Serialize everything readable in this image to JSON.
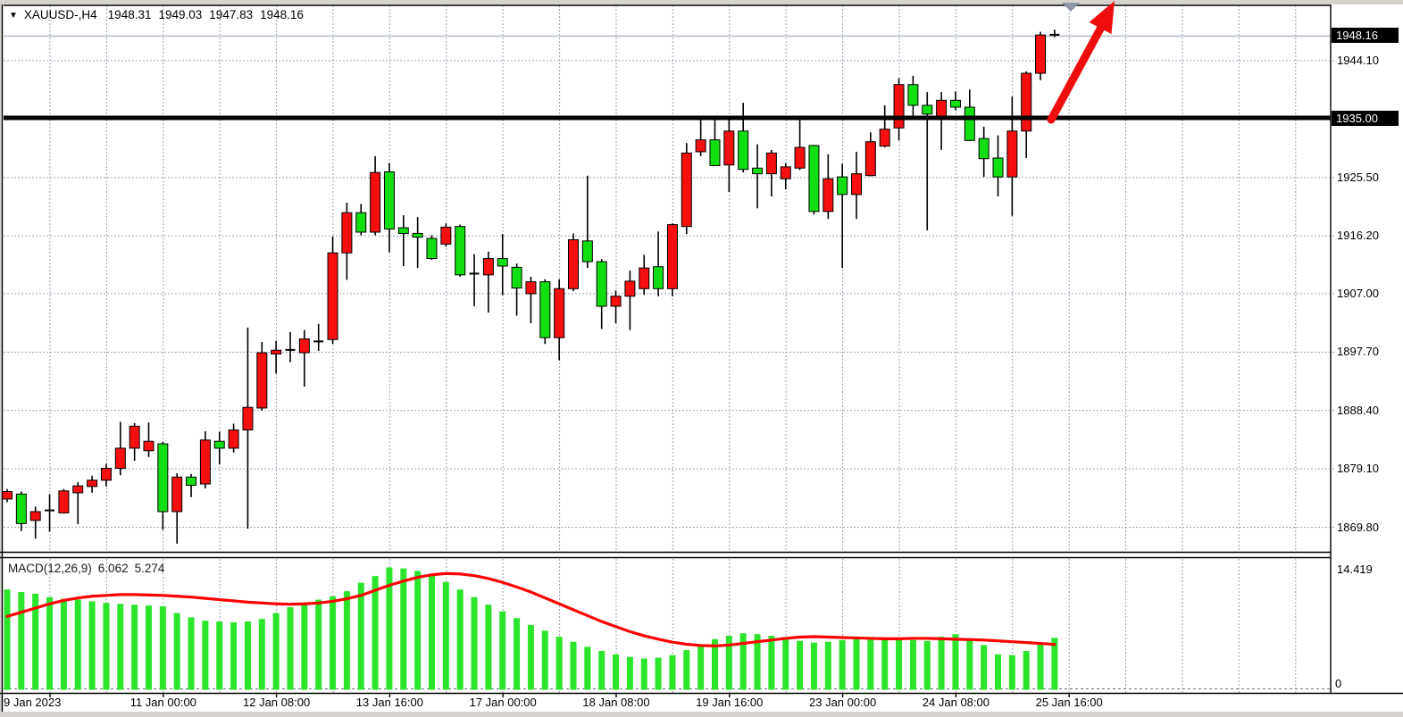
{
  "header": {
    "dropdown_icon": "▼",
    "symbol_period": "XAUUSD-,H4",
    "open": "1948.31",
    "high": "1949.03",
    "low": "1947.83",
    "close": "1948.16"
  },
  "indicator": {
    "name": "MACD(12,26,9)",
    "macd_value": "6.062",
    "signal_value": "5.274"
  },
  "price_axis": {
    "last_price_badge": "1948.16",
    "hline_badge": "1935.00",
    "ticks": [
      {
        "label": "1944.10",
        "price": 1944.1
      },
      {
        "label": "1925.50",
        "price": 1925.5
      },
      {
        "label": "1916.20",
        "price": 1916.2
      },
      {
        "label": "1907.00",
        "price": 1907.0
      },
      {
        "label": "1897.70",
        "price": 1897.7
      },
      {
        "label": "1888.40",
        "price": 1888.4
      },
      {
        "label": "1879.10",
        "price": 1879.1
      },
      {
        "label": "1869.80",
        "price": 1869.8
      }
    ]
  },
  "macd_axis": {
    "max_label": "14.419",
    "zero_label": "0"
  },
  "time_axis": {
    "labels": [
      "9 Jan 2023",
      "11 Jan 00:00",
      "12 Jan 08:00",
      "13 Jan 16:00",
      "17 Jan 00:00",
      "18 Jan 08:00",
      "19 Jan 16:00",
      "23 Jan 00:00",
      "24 Jan 08:00",
      "25 Jan 16:00"
    ]
  },
  "colors": {
    "bull": "#f50f0f",
    "bear": "#12df12",
    "wick": "#000000",
    "grid": "#99a1b0",
    "hline": "#000000",
    "last_price_line": "#b9bfca",
    "macd_histogram": "#2ae52a",
    "macd_signal": "#ff0000",
    "annotation_arrow": "#ee0d0d",
    "shift_marker": "#8d96a4",
    "badge_bg": "#000000",
    "chrome": "#d6d3ce"
  },
  "chart_data": [
    {
      "type": "candlestick",
      "title": "XAUUSD-,H4",
      "ylim": [
        1866.0,
        1953.0
      ],
      "grid_prices": [
        1944.1,
        1934.8,
        1925.5,
        1916.2,
        1907.0,
        1897.7,
        1888.4,
        1879.1,
        1869.8
      ],
      "last_price": 1948.16,
      "annotations": {
        "hline_price": 1935.0,
        "arrow": {
          "desc": "thick red up-right arrow",
          "from_price": 1935.0,
          "to_top": true
        },
        "shift_marker": "gray down triangle at top right"
      },
      "ohlc": [
        [
          1874.3,
          1875.9,
          1873.8,
          1875.5
        ],
        [
          1875.1,
          1875.5,
          1869.2,
          1870.4
        ],
        [
          1870.9,
          1873.1,
          1868.0,
          1872.3
        ],
        [
          1872.4,
          1875.1,
          1869.1,
          1872.6
        ],
        [
          1872.1,
          1875.9,
          1872.0,
          1875.6
        ],
        [
          1875.3,
          1877.0,
          1870.3,
          1876.4
        ],
        [
          1876.3,
          1878.0,
          1875.3,
          1877.3
        ],
        [
          1877.3,
          1879.9,
          1876.3,
          1879.2
        ],
        [
          1879.2,
          1886.6,
          1878.1,
          1882.4
        ],
        [
          1882.4,
          1886.4,
          1880.4,
          1885.9
        ],
        [
          1882.0,
          1886.5,
          1881.0,
          1883.5
        ],
        [
          1883.1,
          1883.4,
          1869.4,
          1872.3
        ],
        [
          1872.3,
          1878.4,
          1867.2,
          1877.8
        ],
        [
          1877.8,
          1878.3,
          1874.6,
          1876.5
        ],
        [
          1876.7,
          1885.1,
          1876.0,
          1883.7
        ],
        [
          1883.5,
          1885.0,
          1879.8,
          1882.4
        ],
        [
          1882.4,
          1886.3,
          1881.7,
          1885.3
        ],
        [
          1885.3,
          1901.6,
          1869.6,
          1888.9
        ],
        [
          1888.8,
          1899.3,
          1888.4,
          1897.6
        ],
        [
          1897.4,
          1899.5,
          1894.3,
          1898.0
        ],
        [
          1897.9,
          1900.9,
          1896.1,
          1898.2
        ],
        [
          1897.6,
          1901.2,
          1892.2,
          1899.8
        ],
        [
          1899.3,
          1902.2,
          1897.9,
          1899.5
        ],
        [
          1899.7,
          1916.1,
          1899.0,
          1913.5
        ],
        [
          1913.5,
          1921.5,
          1909.2,
          1919.9
        ],
        [
          1919.9,
          1921.3,
          1916.3,
          1916.8
        ],
        [
          1916.8,
          1928.9,
          1916.3,
          1926.3
        ],
        [
          1926.4,
          1927.8,
          1913.6,
          1917.3
        ],
        [
          1917.5,
          1919.5,
          1911.4,
          1916.6
        ],
        [
          1916.6,
          1919.2,
          1911.1,
          1916.0
        ],
        [
          1915.8,
          1916.3,
          1912.4,
          1912.6
        ],
        [
          1914.9,
          1918.2,
          1914.5,
          1917.6
        ],
        [
          1917.7,
          1918.0,
          1909.7,
          1910.0
        ],
        [
          1910.1,
          1913.3,
          1905.0,
          1910.3
        ],
        [
          1910.0,
          1913.7,
          1904.0,
          1912.6
        ],
        [
          1912.6,
          1916.5,
          1906.8,
          1911.4
        ],
        [
          1911.2,
          1911.8,
          1903.5,
          1907.9
        ],
        [
          1907.0,
          1909.7,
          1902.3,
          1908.9
        ],
        [
          1908.9,
          1909.3,
          1899.0,
          1900.0
        ],
        [
          1900.0,
          1909.3,
          1896.4,
          1907.8
        ],
        [
          1907.8,
          1916.6,
          1907.4,
          1915.6
        ],
        [
          1915.4,
          1925.8,
          1911.1,
          1912.1
        ],
        [
          1912.1,
          1912.5,
          1901.4,
          1905.0
        ],
        [
          1905.0,
          1907.5,
          1902.3,
          1906.6
        ],
        [
          1906.6,
          1910.7,
          1901.2,
          1909.0
        ],
        [
          1907.8,
          1913.2,
          1906.8,
          1911.1
        ],
        [
          1911.3,
          1916.9,
          1906.6,
          1907.8
        ],
        [
          1907.8,
          1918.2,
          1906.6,
          1918.0
        ],
        [
          1917.7,
          1931.0,
          1916.5,
          1929.4
        ],
        [
          1929.6,
          1934.7,
          1928.9,
          1931.5
        ],
        [
          1931.5,
          1934.7,
          1927.4,
          1927.4
        ],
        [
          1927.5,
          1934.7,
          1923.2,
          1932.9
        ],
        [
          1932.9,
          1937.4,
          1926.3,
          1926.8
        ],
        [
          1927.0,
          1930.8,
          1920.6,
          1926.1
        ],
        [
          1926.1,
          1929.9,
          1922.5,
          1929.4
        ],
        [
          1925.3,
          1927.8,
          1923.6,
          1927.2
        ],
        [
          1927.0,
          1935.0,
          1926.7,
          1930.3
        ],
        [
          1930.6,
          1930.7,
          1919.6,
          1920.1
        ],
        [
          1920.1,
          1929.2,
          1918.9,
          1925.3
        ],
        [
          1925.6,
          1927.7,
          1911.1,
          1922.8
        ],
        [
          1922.8,
          1929.6,
          1918.9,
          1926.1
        ],
        [
          1925.8,
          1932.7,
          1925.7,
          1931.2
        ],
        [
          1930.5,
          1937.0,
          1930.3,
          1933.2
        ],
        [
          1933.4,
          1941.3,
          1931.4,
          1940.3
        ],
        [
          1940.3,
          1941.7,
          1934.9,
          1937.0
        ],
        [
          1937.0,
          1939.1,
          1917.1,
          1935.6
        ],
        [
          1935.0,
          1939.1,
          1929.9,
          1937.8
        ],
        [
          1937.8,
          1939.2,
          1936.2,
          1936.7
        ],
        [
          1936.7,
          1939.5,
          1931.3,
          1931.4
        ],
        [
          1931.7,
          1933.6,
          1925.6,
          1928.5
        ],
        [
          1928.6,
          1932.2,
          1922.5,
          1925.6
        ],
        [
          1925.6,
          1938.4,
          1919.4,
          1932.9
        ],
        [
          1932.9,
          1942.4,
          1928.6,
          1942.1
        ],
        [
          1942.1,
          1948.7,
          1941.0,
          1948.2
        ],
        [
          1948.31,
          1949.03,
          1947.83,
          1948.16
        ]
      ]
    },
    {
      "type": "bar",
      "title": "MACD(12,26,9)",
      "ylabel": "MACD",
      "ylim": [
        -0.4,
        15.6
      ],
      "max_tick": 14.419,
      "zero_tick": 0,
      "values": [
        11.8,
        11.5,
        11.3,
        10.9,
        10.7,
        10.6,
        10.4,
        10.2,
        10.1,
        10.0,
        9.9,
        9.8,
        9.0,
        8.5,
        8.1,
        8.0,
        7.9,
        8.0,
        8.3,
        9.0,
        9.7,
        10.1,
        10.6,
        11.0,
        11.6,
        12.6,
        13.4,
        14.42,
        14.3,
        14.0,
        13.5,
        12.7,
        11.8,
        10.9,
        10.0,
        9.2,
        8.4,
        7.6,
        6.9,
        6.2,
        5.6,
        5.0,
        4.5,
        4.1,
        3.8,
        3.6,
        3.7,
        4.0,
        4.6,
        5.3,
        5.9,
        6.3,
        6.6,
        6.5,
        6.3,
        6.0,
        5.7,
        5.5,
        5.6,
        5.8,
        6.0,
        6.1,
        6.0,
        5.9,
        5.8,
        5.7,
        6.2,
        6.5,
        6.0,
        5.2,
        4.1,
        4.0,
        4.5,
        5.5,
        6.062
      ],
      "signal": [
        8.6,
        9.1,
        9.6,
        10.1,
        10.5,
        10.8,
        11.0,
        11.1,
        11.2,
        11.2,
        11.15,
        11.1,
        11.0,
        10.9,
        10.75,
        10.6,
        10.45,
        10.3,
        10.2,
        10.1,
        10.05,
        10.1,
        10.2,
        10.4,
        10.7,
        11.1,
        11.7,
        12.3,
        12.8,
        13.25,
        13.55,
        13.7,
        13.65,
        13.45,
        13.1,
        12.65,
        12.1,
        11.5,
        10.8,
        10.1,
        9.4,
        8.7,
        8.0,
        7.4,
        6.8,
        6.3,
        5.9,
        5.55,
        5.3,
        5.15,
        5.1,
        5.2,
        5.4,
        5.6,
        5.8,
        6.0,
        6.15,
        6.2,
        6.15,
        6.1,
        6.05,
        6.0,
        5.95,
        5.95,
        6.0,
        6.0,
        5.95,
        5.9,
        5.85,
        5.8,
        5.7,
        5.6,
        5.5,
        5.4,
        5.274
      ]
    }
  ]
}
